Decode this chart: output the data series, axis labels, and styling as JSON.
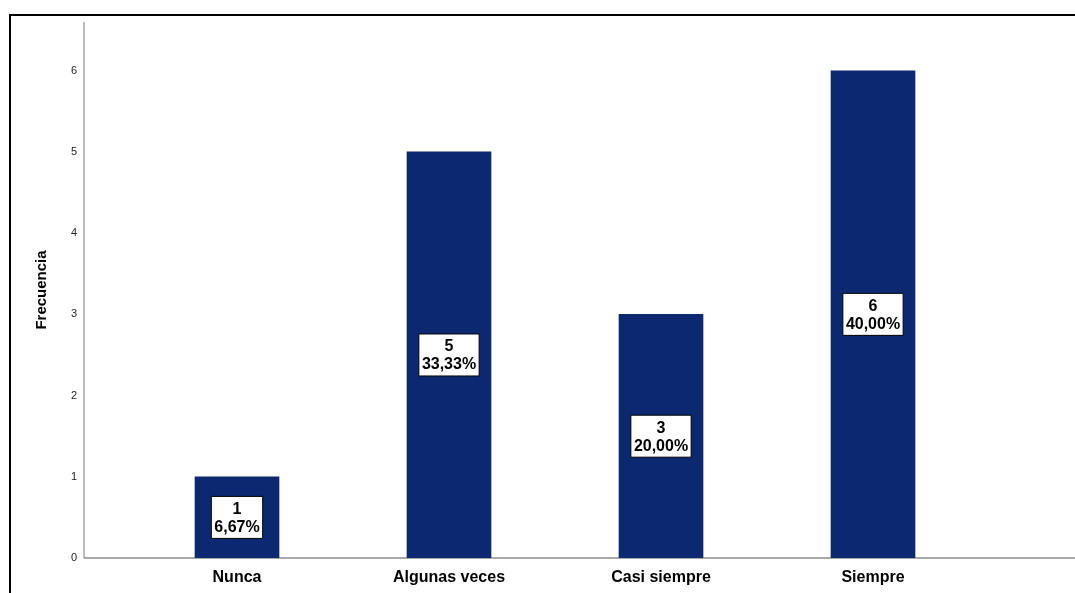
{
  "chart_data": {
    "type": "bar",
    "ylabel": "Frecuencia",
    "categories": [
      "Nunca",
      "Algunas veces",
      "Casi siempre",
      "Siempre"
    ],
    "values": [
      1,
      5,
      3,
      6
    ],
    "color": "#0b2870",
    "value_labels": [
      "1\n6,67%",
      "5\n33,33%",
      "3\n20,00%",
      "6\n40,00%"
    ],
    "ylim": [
      0,
      6.6
    ],
    "yticks": [
      0,
      1,
      2,
      3,
      4,
      5,
      6
    ]
  }
}
